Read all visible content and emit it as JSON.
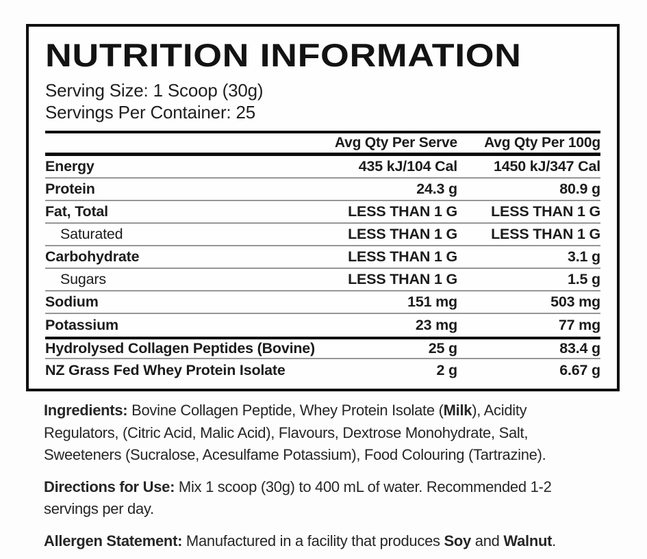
{
  "panel": {
    "title": "NUTRITION INFORMATION",
    "serving_size": "Serving Size: 1 Scoop (30g)",
    "servings_per_container": "Servings Per Container: 25",
    "columns": {
      "serve": "Avg Qty Per Serve",
      "per_100g": "Avg Qty Per 100g"
    },
    "rows": [
      {
        "name": "Energy",
        "serve": "435 kJ/104 Cal",
        "per_100g": "1450 kJ/347 Cal"
      },
      {
        "name": "Protein",
        "serve": "24.3 g",
        "per_100g": "80.9 g"
      },
      {
        "name": "Fat, Total",
        "serve": "LESS THAN 1 G",
        "per_100g": "LESS THAN 1 G"
      },
      {
        "name": "Saturated",
        "serve": "LESS THAN 1 G",
        "per_100g": "LESS THAN 1 G",
        "indent": true
      },
      {
        "name": "Carbohydrate",
        "serve": "LESS THAN 1 G",
        "per_100g": "3.1 g"
      },
      {
        "name": "Sugars",
        "serve": "LESS THAN 1 G",
        "per_100g": "1.5 g",
        "indent": true
      },
      {
        "name": "Sodium",
        "serve": "151 mg",
        "per_100g": "503 mg"
      },
      {
        "name": "Potassium",
        "serve": "23 mg",
        "per_100g": "77 mg"
      },
      {
        "name": "Hydrolysed Collagen Peptides (Bovine)",
        "serve": "25 g",
        "per_100g": "83.4 g"
      },
      {
        "name": "NZ Grass Fed Whey Protein Isolate",
        "serve": "2 g",
        "per_100g": "6.67 g"
      }
    ]
  },
  "notes": {
    "ingredients": {
      "lead": "Ingredients:",
      "before_milk": " Bovine Collagen Peptide, Whey Protein Isolate (",
      "milk": "Milk",
      "after_milk": "), Acidity Regulators, (Citric Acid, Malic Acid), Flavours, Dextrose Monohydrate, Salt, Sweeteners (Sucralose, Acesulfame Potassium), Food Colouring (Tartrazine)."
    },
    "directions": {
      "lead": "Directions for Use:",
      "body": " Mix 1 scoop (30g) to 400 mL of water. Recommended 1-2 servings per day."
    },
    "allergen": {
      "lead": "Allergen Statement:",
      "body_start": " Manufactured in a facility that produces ",
      "soy": "Soy",
      "joiner": " and ",
      "walnut": "Walnut",
      "period": "."
    }
  },
  "colors": {
    "text": "#1c1c1c",
    "rule_thin": "#969696",
    "rule_thick": "#0a0a0a",
    "background": "#fdfdfd"
  }
}
